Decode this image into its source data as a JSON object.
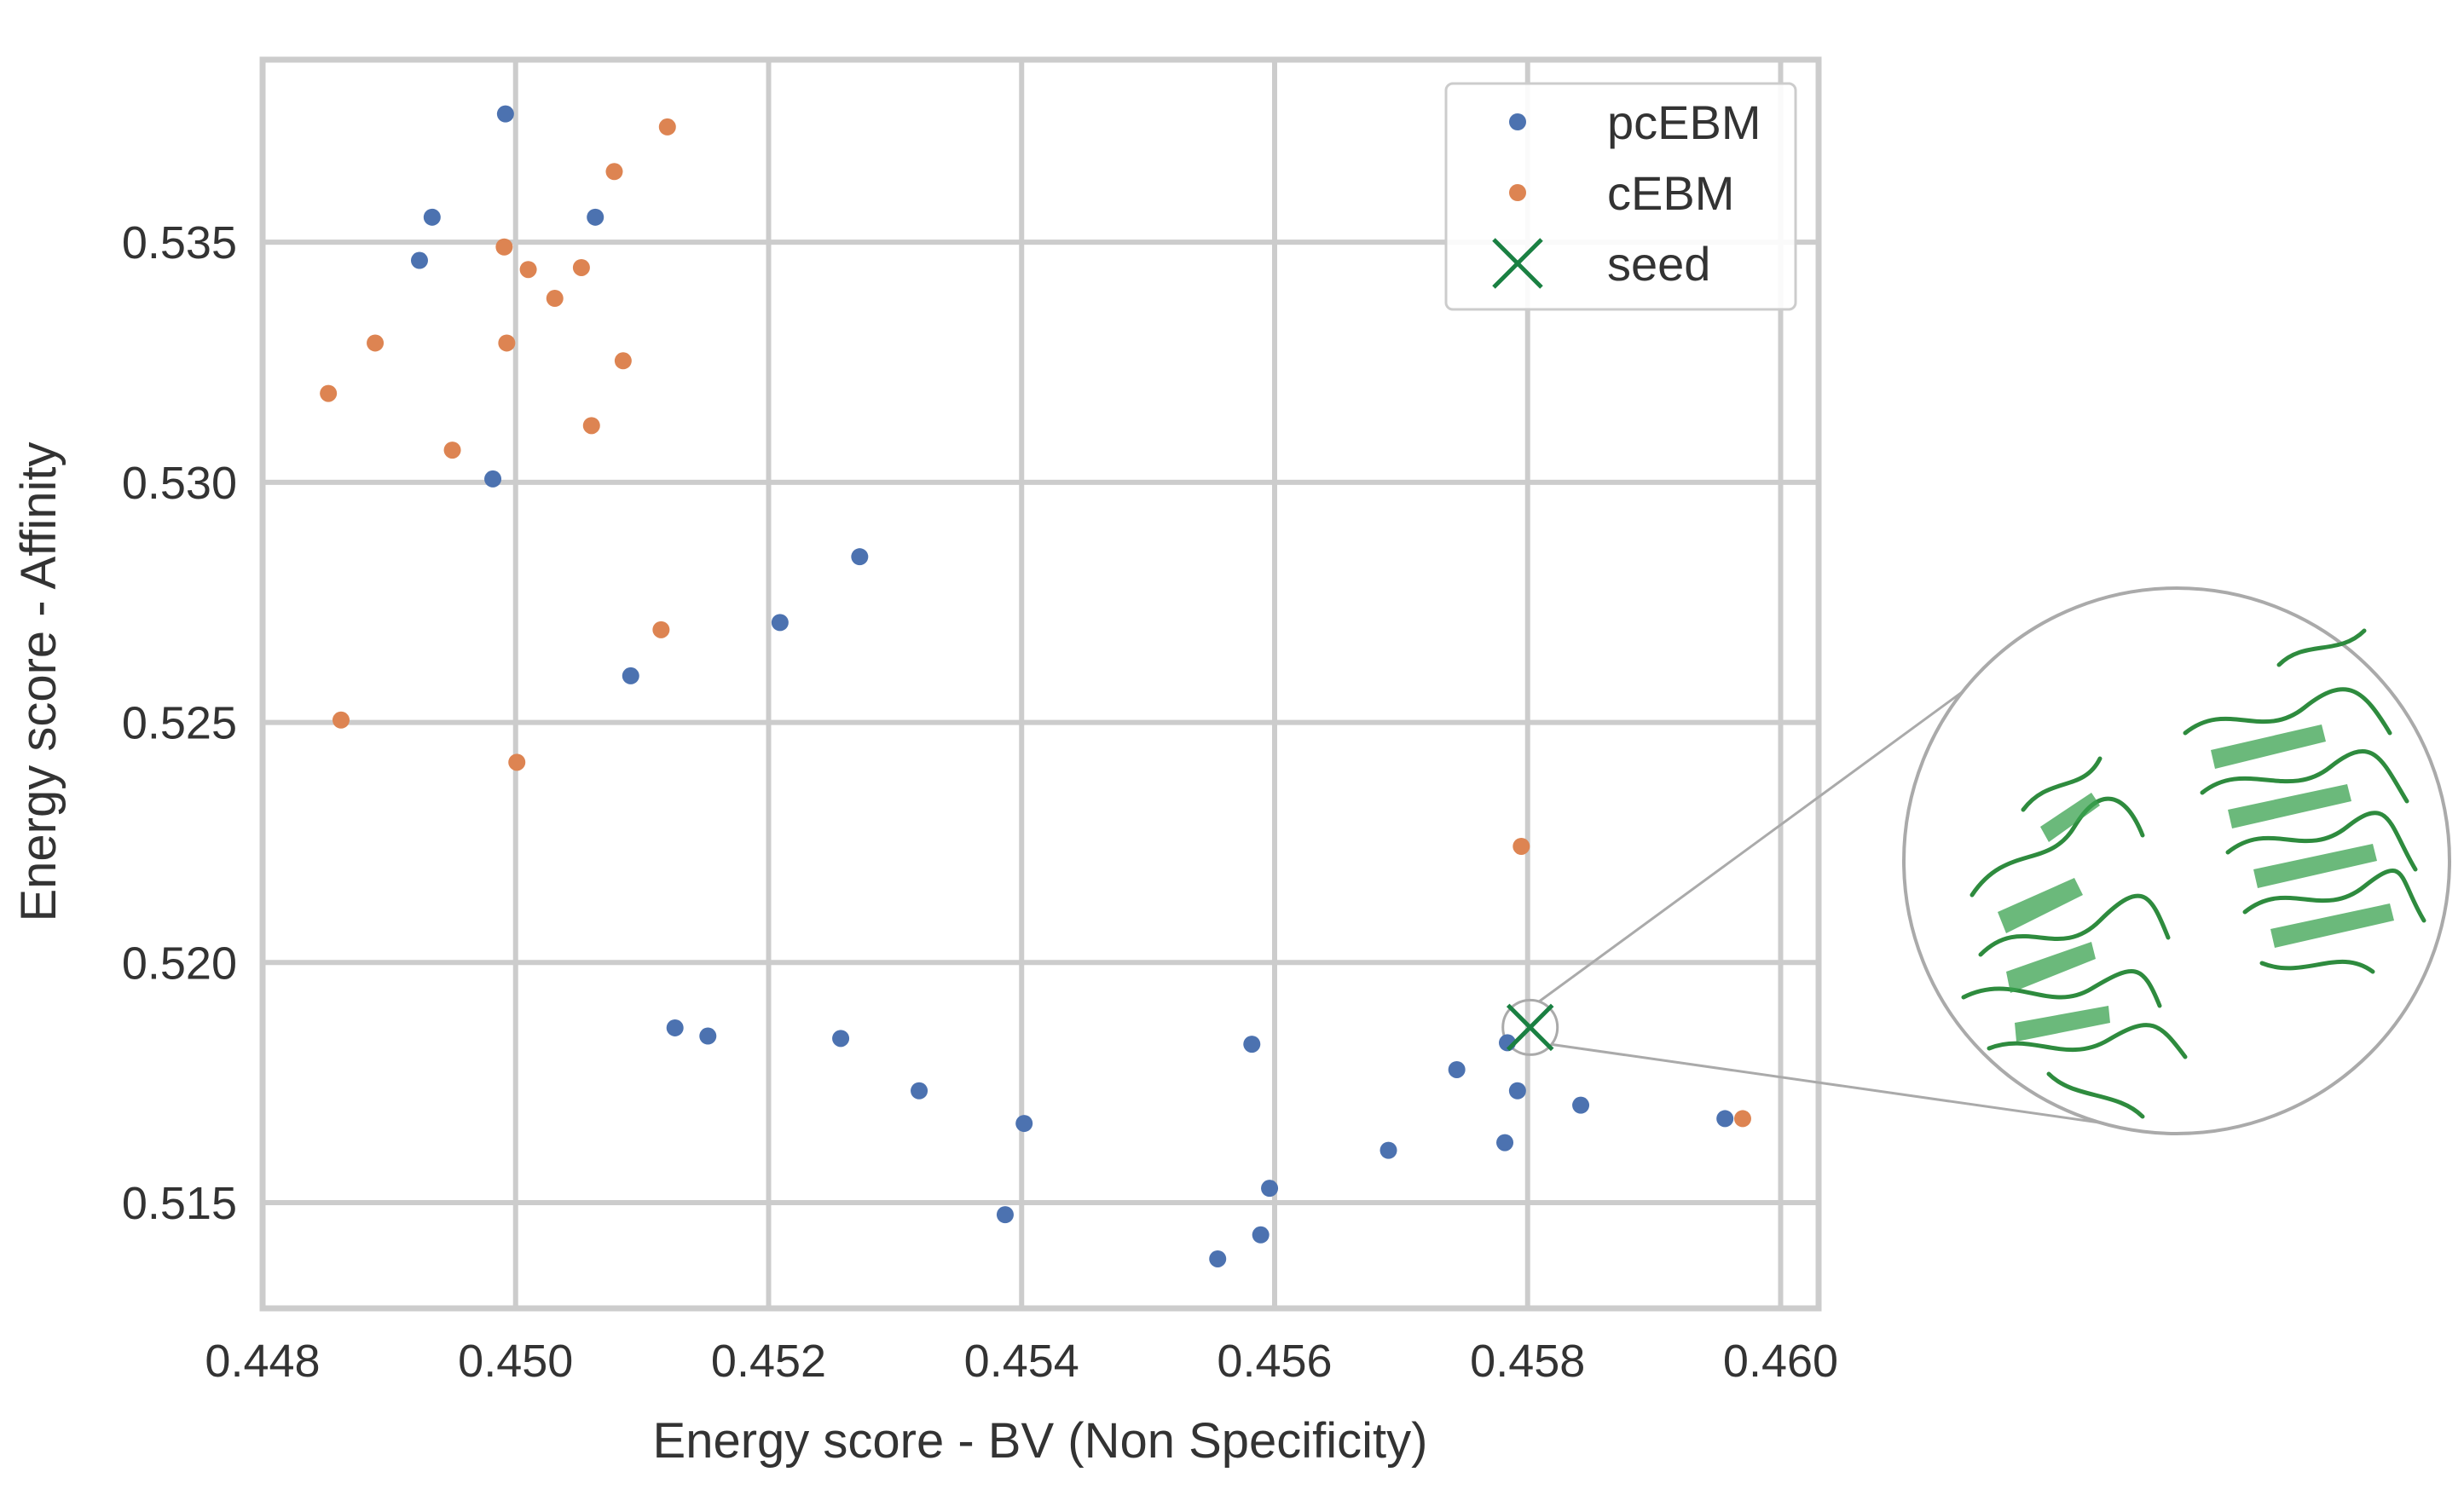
{
  "chart_data": {
    "type": "scatter",
    "title": "",
    "xlabel": "Energy score - BV (Non Specificity)",
    "ylabel": "Energy score - Affinity",
    "xlim": [
      0.448,
      0.4603
    ],
    "ylim": [
      0.5128,
      0.5388
    ],
    "xticks": [
      0.448,
      0.45,
      0.452,
      0.454,
      0.456,
      0.458,
      0.46
    ],
    "xtick_labels": [
      "0.448",
      "0.450",
      "0.452",
      "0.454",
      "0.456",
      "0.458",
      "0.460"
    ],
    "yticks": [
      0.515,
      0.52,
      0.525,
      0.53,
      0.535
    ],
    "ytick_labels": [
      "0.515",
      "0.520",
      "0.525",
      "0.530",
      "0.535"
    ],
    "grid": true,
    "legend_position": "top-right",
    "series": [
      {
        "name": "pcEBM",
        "color": "#4c72b0",
        "marker": "circle",
        "points": [
          [
            0.44992,
            0.53767
          ],
          [
            0.44934,
            0.53552
          ],
          [
            0.45063,
            0.53552
          ],
          [
            0.44924,
            0.53462
          ],
          [
            0.44982,
            0.53007
          ],
          [
            0.45272,
            0.52845
          ],
          [
            0.45209,
            0.52708
          ],
          [
            0.45091,
            0.52597
          ],
          [
            0.45126,
            0.51864
          ],
          [
            0.45152,
            0.51847
          ],
          [
            0.45257,
            0.51842
          ],
          [
            0.45582,
            0.5183
          ],
          [
            0.45319,
            0.51733
          ],
          [
            0.45402,
            0.51665
          ],
          [
            0.45387,
            0.51475
          ],
          [
            0.45555,
            0.51383
          ],
          [
            0.45589,
            0.51433
          ],
          [
            0.45596,
            0.5153
          ],
          [
            0.4569,
            0.51609
          ],
          [
            0.45744,
            0.51777
          ],
          [
            0.45782,
            0.51625
          ],
          [
            0.45792,
            0.51733
          ],
          [
            0.45784,
            0.51833
          ],
          [
            0.45842,
            0.51703
          ],
          [
            0.45956,
            0.51675
          ]
        ]
      },
      {
        "name": "cEBM",
        "color": "#dd8452",
        "marker": "circle",
        "points": [
          [
            0.4512,
            0.5374
          ],
          [
            0.45078,
            0.53647
          ],
          [
            0.44991,
            0.5349
          ],
          [
            0.4501,
            0.53443
          ],
          [
            0.45052,
            0.53447
          ],
          [
            0.45031,
            0.53383
          ],
          [
            0.44889,
            0.5329
          ],
          [
            0.44993,
            0.5329
          ],
          [
            0.45085,
            0.53253
          ],
          [
            0.44852,
            0.53185
          ],
          [
            0.4506,
            0.53118
          ],
          [
            0.4495,
            0.53067
          ],
          [
            0.45115,
            0.52693
          ],
          [
            0.44862,
            0.52505
          ],
          [
            0.45001,
            0.52417
          ],
          [
            0.45795,
            0.52242
          ],
          [
            0.4597,
            0.51675
          ]
        ]
      },
      {
        "name": "seed",
        "color": "#1a8042",
        "marker": "x",
        "points": [
          [
            0.45802,
            0.51865
          ]
        ]
      }
    ]
  },
  "legend": {
    "items": [
      {
        "label": "pcEBM"
      },
      {
        "label": "cEBM"
      },
      {
        "label": "seed"
      }
    ]
  },
  "inset": {
    "description_icon": "protein-structure-icon",
    "zoom_target": "seed"
  }
}
